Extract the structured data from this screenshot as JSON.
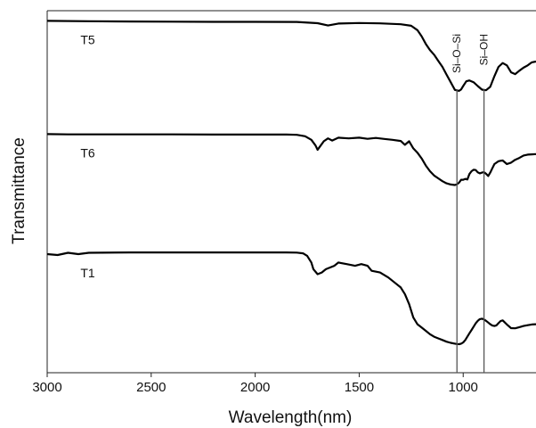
{
  "chart_data": {
    "type": "line",
    "title": "",
    "xlabel": "Wavelength(nm)",
    "ylabel": "Transmittance",
    "xlim": [
      3000,
      650
    ],
    "xaxis_reversed": true,
    "ylim": [
      0,
      100
    ],
    "grid": false,
    "legend": "none",
    "xticks": [
      3000,
      2500,
      2000,
      1500,
      1000
    ],
    "xtick_labels": [
      "3000",
      "2500",
      "2000",
      "1500",
      "1000"
    ],
    "series": [
      {
        "name": "T5",
        "color": "#000000",
        "x": [
          3000,
          2800,
          2600,
          2400,
          2200,
          2000,
          1800,
          1700,
          1650,
          1600,
          1500,
          1400,
          1300,
          1250,
          1220,
          1200,
          1180,
          1160,
          1140,
          1120,
          1100,
          1080,
          1060,
          1040,
          1020,
          1010,
          1000,
          985,
          970,
          950,
          930,
          910,
          890,
          870,
          850,
          830,
          810,
          790,
          770,
          750,
          730,
          710,
          690,
          670,
          650
        ],
        "y": [
          98,
          97.8,
          97.6,
          97.5,
          97.4,
          97.4,
          97.3,
          96.5,
          95,
          96.3,
          96.6,
          96.4,
          95.8,
          94.8,
          92,
          88,
          83,
          79,
          76,
          72,
          68,
          63,
          58,
          53,
          52.4,
          53.3,
          55.5,
          58.6,
          59.2,
          58,
          55.5,
          53.2,
          52.8,
          55,
          62,
          68,
          70.5,
          69,
          64.5,
          63.3,
          65.5,
          67.5,
          69,
          71,
          71.5
        ]
      },
      {
        "name": "T6",
        "color": "#000000",
        "x": [
          3000,
          2900,
          2800,
          2600,
          2400,
          2200,
          2000,
          1850,
          1800,
          1760,
          1730,
          1710,
          1700,
          1690,
          1670,
          1650,
          1630,
          1600,
          1550,
          1500,
          1460,
          1420,
          1380,
          1340,
          1300,
          1280,
          1260,
          1240,
          1220,
          1200,
          1180,
          1160,
          1140,
          1120,
          1100,
          1080,
          1060,
          1040,
          1030,
          1020,
          1010,
          1000,
          990,
          980,
          970,
          960,
          950,
          940,
          930,
          920,
          910,
          900,
          890,
          880,
          870,
          860,
          850,
          840,
          830,
          820,
          810,
          790,
          770,
          750,
          730,
          710,
          690,
          670,
          650
        ],
        "y": [
          76,
          75.8,
          75.8,
          75.8,
          75.8,
          75.7,
          75.7,
          75.7,
          75.5,
          74.5,
          72,
          68,
          65,
          67,
          71,
          73,
          71.5,
          73.5,
          73,
          73.5,
          72.7,
          73.3,
          72.6,
          72,
          71.2,
          68.5,
          71,
          66,
          63,
          59,
          54,
          50,
          47,
          45,
          43,
          41.5,
          40.7,
          40.3,
          40.8,
          42,
          44,
          44,
          44.6,
          44.2,
          48,
          50,
          51,
          50.8,
          49.2,
          48.5,
          49,
          49.3,
          48.2,
          46.6,
          49,
          52,
          55,
          56,
          57,
          57.3,
          57.5,
          55,
          56,
          58,
          59.3,
          61,
          61.6,
          61.8,
          62
        ]
      },
      {
        "name": "T1",
        "color": "#000000",
        "x": [
          3000,
          2950,
          2900,
          2850,
          2800,
          2600,
          2400,
          2200,
          2000,
          1850,
          1800,
          1770,
          1750,
          1730,
          1720,
          1700,
          1680,
          1660,
          1640,
          1620,
          1600,
          1560,
          1520,
          1490,
          1460,
          1440,
          1400,
          1360,
          1320,
          1300,
          1280,
          1260,
          1240,
          1220,
          1200,
          1180,
          1160,
          1140,
          1120,
          1100,
          1080,
          1060,
          1040,
          1030,
          1020,
          1010,
          1000,
          990,
          980,
          970,
          960,
          950,
          940,
          930,
          920,
          910,
          900,
          890,
          880,
          870,
          860,
          850,
          840,
          830,
          820,
          810,
          790,
          770,
          750,
          730,
          710,
          690,
          670,
          650
        ],
        "y": [
          54,
          53.5,
          54.8,
          54,
          54.8,
          55,
          55,
          55,
          55,
          55,
          54.9,
          54.5,
          53,
          49,
          45,
          42,
          43,
          45,
          46,
          47,
          49,
          48,
          47,
          48,
          47,
          44,
          43,
          40,
          36,
          34,
          30,
          24,
          16,
          12,
          10,
          8,
          6,
          4.5,
          3.5,
          2.5,
          1.5,
          0.8,
          0.3,
          0.1,
          0,
          0.3,
          1,
          2.5,
          4.5,
          6.5,
          8.5,
          10.5,
          12.5,
          14,
          15,
          15.3,
          14.8,
          14,
          13,
          12,
          11.2,
          10.9,
          11.3,
          12.6,
          13.9,
          14.3,
          11.8,
          9.6,
          9.5,
          10.2,
          10.9,
          11.4,
          11.8,
          12
        ]
      }
    ],
    "series_labels": [
      {
        "text": "T5",
        "x": 2840,
        "series": "T5"
      },
      {
        "text": "T6",
        "x": 2840,
        "series": "T6"
      },
      {
        "text": "T1",
        "x": 2840,
        "series": "T1"
      }
    ],
    "annotations": [
      {
        "label": "Si–O–Si",
        "x": 1030
      },
      {
        "label": "Si–OH",
        "x": 900
      }
    ]
  }
}
